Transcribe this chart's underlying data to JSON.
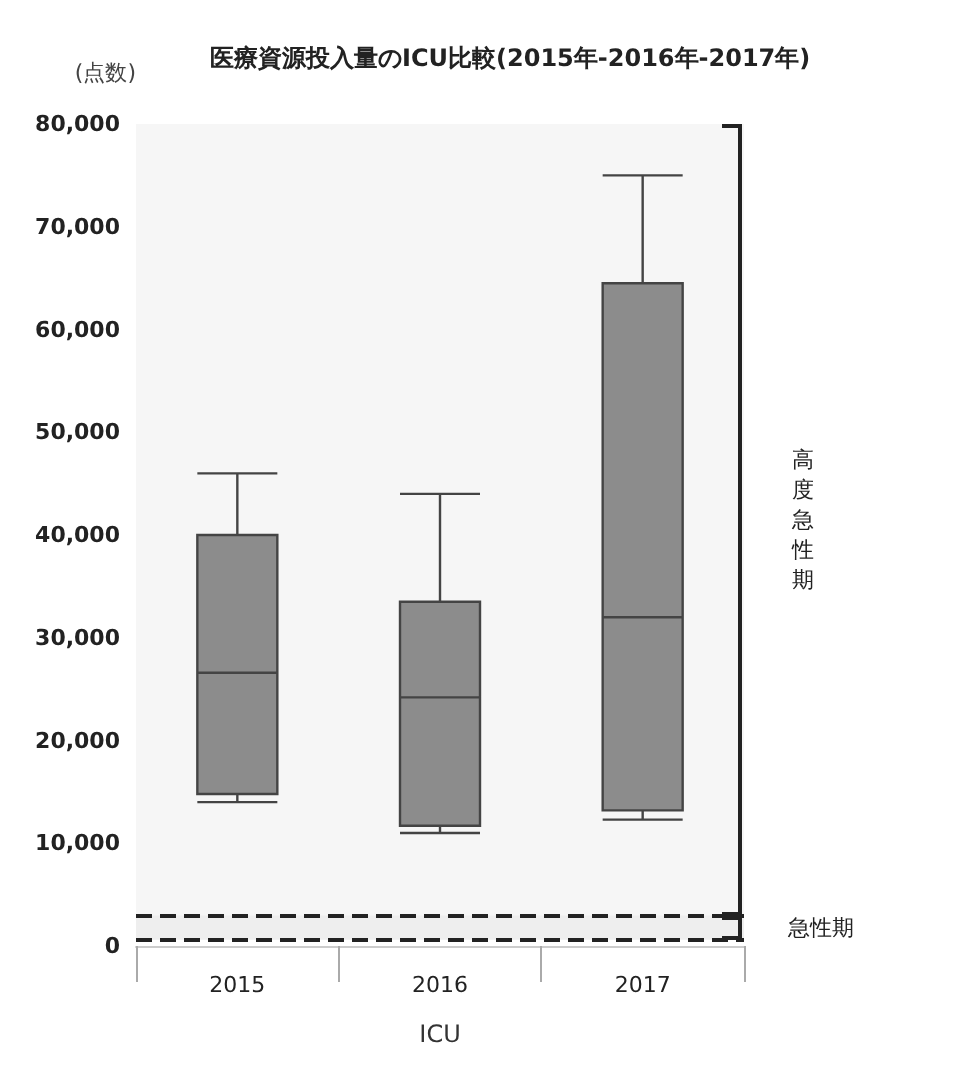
{
  "chart_data": {
    "type": "box",
    "title": "医療資源投入量のICU比較(2015年-2016年-2017年)",
    "xlabel": "ICU",
    "ylabel": "(点数)",
    "categories": [
      "2015",
      "2016",
      "2017"
    ],
    "boxes": [
      {
        "low": 14000,
        "q1": 14800,
        "median": 26600,
        "q3": 40000,
        "high": 46000
      },
      {
        "low": 11000,
        "q1": 11700,
        "median": 24200,
        "q3": 33500,
        "high": 44000
      },
      {
        "low": 12300,
        "q1": 13200,
        "median": 32000,
        "q3": 64500,
        "high": 75000
      }
    ],
    "color": "#8c8c8c",
    "ylim": [
      0,
      80000
    ],
    "yticks": [
      0,
      {
        "value": 10000,
        "label": "10,000"
      },
      {
        "value": 20000,
        "label": "20,000"
      },
      {
        "value": 30000,
        "label": "30,000"
      },
      {
        "value": 40000,
        "label": "40,000"
      },
      {
        "value": 50000,
        "label": "50,000"
      },
      {
        "value": 60000,
        "label": "60,000"
      },
      {
        "value": 70000,
        "label": "70,000"
      },
      {
        "value": 80000,
        "label": "80,000"
      }
    ],
    "grid": false,
    "bands": [
      {
        "axis": "y",
        "from": 3000,
        "to": 80000,
        "label": "高度急性期",
        "color": "#f6f6f6"
      },
      {
        "axis": "y",
        "from": 600,
        "to": 3000,
        "label": "急性期",
        "color": "#eeeeee"
      }
    ],
    "ref_lines": [
      {
        "axis": "y",
        "value": 3000,
        "label": null,
        "line_style": "dashed",
        "color": "#222222"
      },
      {
        "axis": "y",
        "value": 600,
        "label": null,
        "line_style": "dashed",
        "color": "#222222"
      }
    ]
  }
}
